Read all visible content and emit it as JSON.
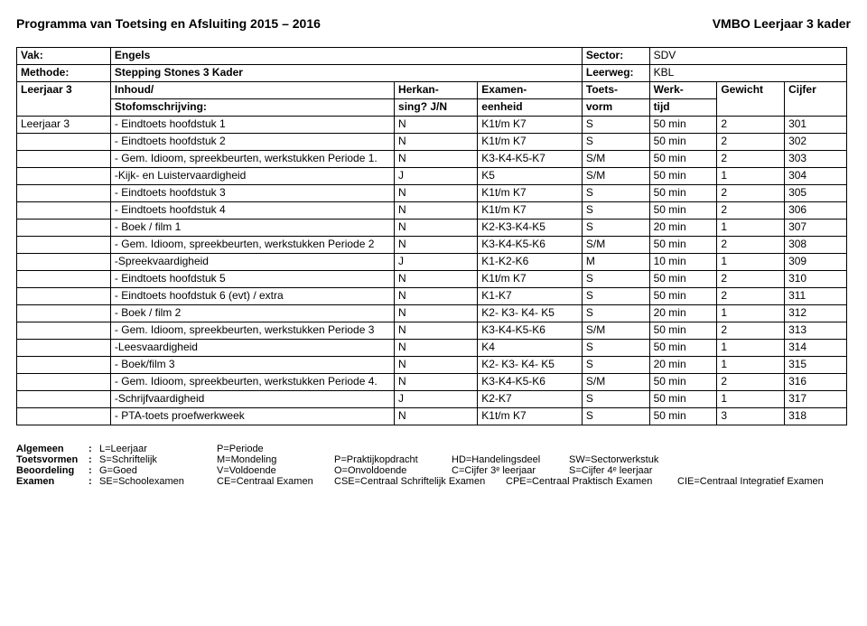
{
  "header": {
    "title_left": "Programma van Toetsing en Afsluiting 2015 – 2016",
    "title_right": "VMBO Leerjaar 3 kader"
  },
  "info": {
    "vak_label": "Vak:",
    "vak_value": "Engels",
    "sector_label": "Sector:",
    "sector_value": "SDV",
    "methode_label": "Methode:",
    "methode_value": "Stepping Stones 3 Kader",
    "leerweg_label": "Leerweg:",
    "leerweg_value": "KBL",
    "leerjaar_label": "Leerjaar 3",
    "inhoud_label_line1": "Inhoud/",
    "inhoud_label_line2": "Stofomschrijving:",
    "herkan_line1": "Herkan-",
    "herkan_line2": "sing? J/N",
    "exeen_line1": "Examen-",
    "exeen_line2": "eenheid",
    "tvorm_line1": "Toets-",
    "tvorm_line2": "vorm",
    "wtijd_line1": "Werk-",
    "wtijd_line2": "tijd",
    "gewicht_label": "Gewicht",
    "cijfer_label": "Cijfer"
  },
  "leerjaar3_label": "Leerjaar 3",
  "rows": [
    {
      "inhoud": "- Eindtoets hoofdstuk 1",
      "herkan": "N",
      "ee": "K1t/m K7",
      "tv": "S",
      "wt": "50 min",
      "gw": "2",
      "cf": "301"
    },
    {
      "inhoud": "- Eindtoets hoofdstuk 2",
      "herkan": "N",
      "ee": "K1t/m K7",
      "tv": "S",
      "wt": "50 min",
      "gw": "2",
      "cf": "302"
    },
    {
      "inhoud": "- Gem. Idioom, spreekbeurten, werkstukken Periode 1.",
      "herkan": "N",
      "ee": "K3-K4-K5-K7",
      "tv": "S/M",
      "wt": "50 min",
      "gw": "2",
      "cf": "303"
    },
    {
      "inhoud": "-Kijk- en Luistervaardigheid",
      "herkan": "J",
      "ee": "K5",
      "tv": "S/M",
      "wt": "50 min",
      "gw": "1",
      "cf": "304"
    },
    {
      "inhoud": "- Eindtoets  hoofdstuk 3",
      "herkan": "N",
      "ee": "K1t/m K7",
      "tv": "S",
      "wt": "50 min",
      "gw": "2",
      "cf": "305"
    },
    {
      "inhoud": "- Eindtoets hoofdstuk 4",
      "herkan": "N",
      "ee": "K1t/m K7",
      "tv": "S",
      "wt": "50 min",
      "gw": "2",
      "cf": "306"
    },
    {
      "inhoud": "- Boek / film 1",
      "herkan": "N",
      "ee": "K2-K3-K4-K5",
      "tv": "S",
      "wt": "20 min",
      "gw": "1",
      "cf": "307"
    },
    {
      "inhoud": "- Gem. Idioom, spreekbeurten, werkstukken Periode 2",
      "herkan": "N",
      "ee": "K3-K4-K5-K6",
      "tv": "S/M",
      "wt": "50 min",
      "gw": "2",
      "cf": "308"
    },
    {
      "inhoud": "-Spreekvaardigheid",
      "herkan": "J",
      "ee": "K1-K2-K6",
      "tv": "M",
      "wt": "10 min",
      "gw": "1",
      "cf": "309"
    },
    {
      "inhoud": "- Eindtoets hoofdstuk 5",
      "herkan": "N",
      "ee": "K1t/m K7",
      "tv": "S",
      "wt": "50 min",
      "gw": "2",
      "cf": "310"
    },
    {
      "inhoud": "- Eindtoets hoofdstuk 6 (evt) / extra",
      "herkan": "N",
      "ee": "K1-K7",
      "tv": "S",
      "wt": "50 min",
      "gw": "2",
      "cf": "311"
    },
    {
      "inhoud": "- Boek / film 2",
      "herkan": "N",
      "ee": "K2- K3- K4- K5",
      "tv": "S",
      "wt": "20 min",
      "gw": "1",
      "cf": "312"
    },
    {
      "inhoud": "- Gem. Idioom, spreekbeurten, werkstukken Periode 3",
      "herkan": "N",
      "ee": "K3-K4-K5-K6",
      "tv": "S/M",
      "wt": "50 min",
      "gw": "2",
      "cf": "313"
    },
    {
      "inhoud": "-Leesvaardigheid",
      "herkan": "N",
      "ee": "K4",
      "tv": "S",
      "wt": "50 min",
      "gw": "1",
      "cf": "314"
    },
    {
      "inhoud": "- Boek/film 3",
      "herkan": "N",
      "ee": "K2- K3- K4- K5",
      "tv": "S",
      "wt": "20 min",
      "gw": "1",
      "cf": "315"
    },
    {
      "inhoud": "- Gem. Idioom, spreekbeurten, werkstukken Periode 4.",
      "herkan": "N",
      "ee": "K3-K4-K5-K6",
      "tv": "S/M",
      "wt": "50 min",
      "gw": "2",
      "cf": "316"
    },
    {
      "inhoud": "-Schrijfvaardigheid",
      "herkan": "J",
      "ee": "K2-K7",
      "tv": "S",
      "wt": "50 min",
      "gw": "1",
      "cf": "317"
    },
    {
      "inhoud": "- PTA-toets  proefwerkweek",
      "herkan": "N",
      "ee": "K1t/m K7",
      "tv": "S",
      "wt": "50 min",
      "gw": "3",
      "cf": "318"
    }
  ],
  "legend": {
    "r1": {
      "k": "Algemeen",
      "c": ":",
      "a": "L=Leerjaar",
      "b": "P=Periode",
      "d": "",
      "e": "",
      "f": ""
    },
    "r2": {
      "k": "Toetsvormen",
      "c": ":",
      "a": "S=Schriftelijk",
      "b": "M=Mondeling",
      "d": "P=Praktijkopdracht",
      "e": "HD=Handelingsdeel",
      "f": "SW=Sectorwerkstuk"
    },
    "r3": {
      "k": "Beoordeling",
      "c": ":",
      "a": "G=Goed",
      "b": "V=Voldoende",
      "d": "O=Onvoldoende",
      "e": "C=Cijfer 3ᵉ leerjaar",
      "f": "S=Cijfer 4ᵉ leerjaar"
    },
    "r4": {
      "k": "Examen",
      "c": ":",
      "a": "SE=Schoolexamen",
      "b": "CE=Centraal Examen",
      "d": "CSE=Centraal Schriftelijk Examen",
      "e": "CPE=Centraal Praktisch Examen",
      "f": "CIE=Centraal Integratief Examen"
    }
  }
}
